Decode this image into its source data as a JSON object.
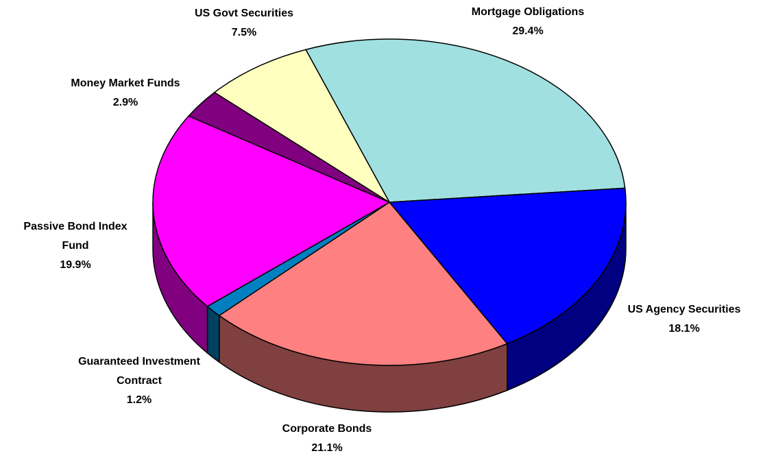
{
  "chart_data": {
    "type": "pie",
    "categories": [
      "Mortgage Obligations",
      "US Agency Securities",
      "Corporate Bonds",
      "Guaranteed Investment Contract",
      "Passive Bond Index Fund",
      "Money Market Funds",
      "US Govt Securities"
    ],
    "values": [
      29.4,
      18.1,
      21.1,
      1.2,
      19.9,
      2.9,
      7.5
    ],
    "value_labels": [
      "29.4%",
      "18.1%",
      "21.1%",
      "1.2%",
      "19.9%",
      "2.9%",
      "7.5%"
    ],
    "colors": [
      "#a0e0e0",
      "#0000ff",
      "#ff8080",
      "#0080c0",
      "#ff00ff",
      "#800080",
      "#ffffc0"
    ]
  }
}
